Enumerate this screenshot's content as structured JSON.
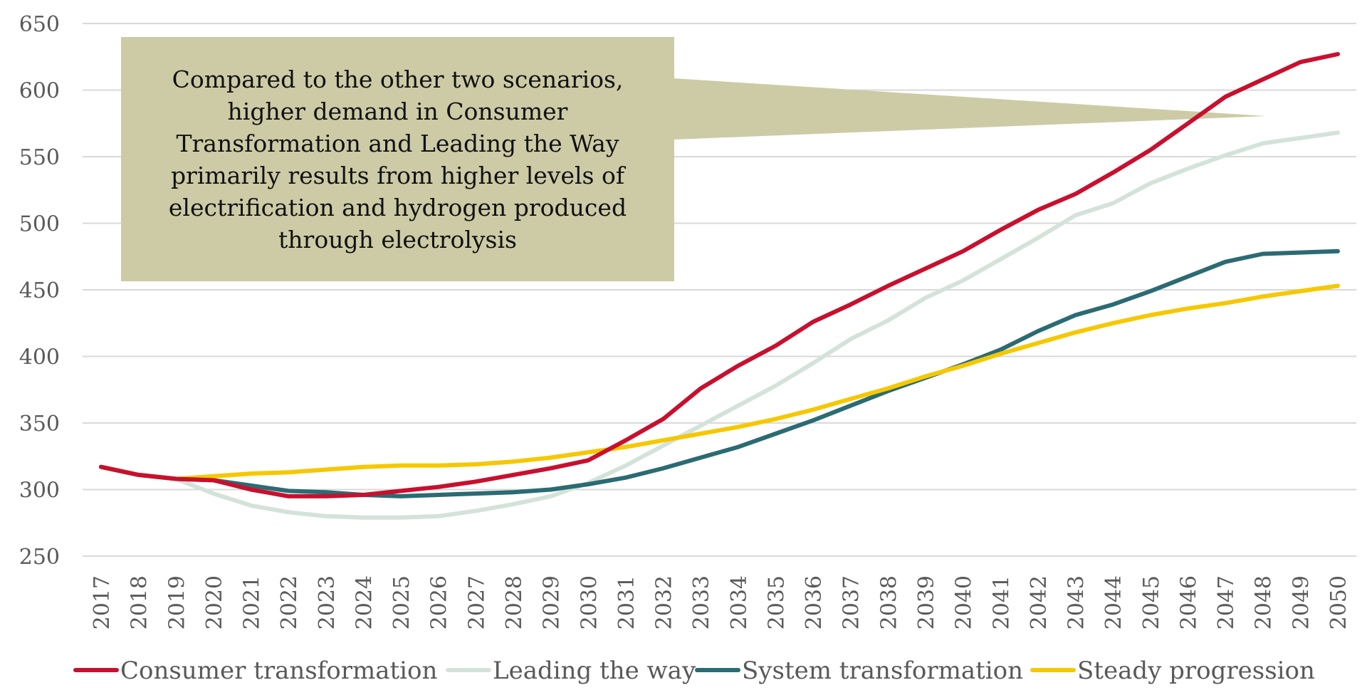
{
  "chart_data": {
    "type": "line",
    "title": "",
    "xlabel": "",
    "ylabel": "",
    "ylim": [
      250,
      650
    ],
    "yticks": [
      250,
      300,
      350,
      400,
      450,
      500,
      550,
      600,
      650
    ],
    "grid": true,
    "legend_position": "bottom",
    "x": [
      2017,
      2018,
      2019,
      2020,
      2021,
      2022,
      2023,
      2024,
      2025,
      2026,
      2027,
      2028,
      2029,
      2030,
      2031,
      2032,
      2033,
      2034,
      2035,
      2036,
      2037,
      2038,
      2039,
      2040,
      2041,
      2042,
      2043,
      2044,
      2045,
      2046,
      2047,
      2048,
      2049,
      2050
    ],
    "series": [
      {
        "name": "Consumer transformation",
        "color": "#C8102E",
        "values": [
          317,
          311,
          308,
          307,
          300,
          295,
          295,
          296,
          299,
          302,
          306,
          311,
          316,
          322,
          337,
          353,
          376,
          393,
          408,
          426,
          439,
          453,
          466,
          479,
          495,
          510,
          522,
          538,
          555,
          575,
          595,
          608,
          621,
          627
        ]
      },
      {
        "name": "Leading the way",
        "color": "#D4E3D9",
        "values": [
          317,
          311,
          308,
          297,
          288,
          283,
          280,
          279,
          279,
          280,
          284,
          289,
          295,
          305,
          318,
          333,
          348,
          363,
          378,
          395,
          413,
          427,
          444,
          457,
          473,
          489,
          506,
          515,
          530,
          541,
          551,
          560,
          564,
          568
        ]
      },
      {
        "name": "System transformation",
        "color": "#2B6B73",
        "values": [
          317,
          311,
          308,
          307,
          303,
          299,
          298,
          296,
          295,
          296,
          297,
          298,
          300,
          304,
          309,
          316,
          324,
          332,
          342,
          352,
          363,
          374,
          384,
          394,
          405,
          419,
          431,
          439,
          449,
          460,
          471,
          477,
          478,
          479
        ]
      },
      {
        "name": "Steady progression",
        "color": "#F5C800",
        "values": [
          317,
          311,
          308,
          310,
          312,
          313,
          315,
          317,
          318,
          318,
          319,
          321,
          324,
          328,
          332,
          337,
          342,
          347,
          353,
          360,
          368,
          376,
          385,
          393,
          402,
          410,
          418,
          425,
          431,
          436,
          440,
          445,
          449,
          453
        ]
      }
    ],
    "annotations": [
      {
        "text": "Compared to the other two scenarios, higher demand in Consumer Transformation and Leading the Way primarily results from higher levels of electrification and hydrogen produced through electrolysis",
        "fill": "#CCCBA6"
      }
    ]
  }
}
